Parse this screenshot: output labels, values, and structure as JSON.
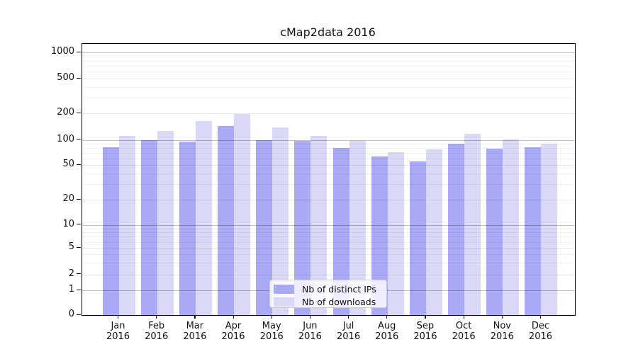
{
  "chart_data": {
    "type": "bar",
    "title": "cMap2data 2016",
    "categories": [
      "Jan",
      "Feb",
      "Mar",
      "Apr",
      "May",
      "Jun",
      "Jul",
      "Aug",
      "Sep",
      "Oct",
      "Nov",
      "Dec"
    ],
    "x_year_label": "2016",
    "series": [
      {
        "name": "Nb of distinct IPs",
        "color": "#a9a9f5",
        "values": [
          82,
          100,
          96,
          145,
          100,
          98,
          80,
          63,
          55,
          90,
          78,
          82
        ]
      },
      {
        "name": "Nb of downloads",
        "color": "#d9d9f7",
        "values": [
          111,
          127,
          162,
          198,
          139,
          111,
          98,
          71,
          77,
          117,
          101,
          91
        ]
      }
    ],
    "y_axis": {
      "scale": "symlog",
      "ticks": [
        0,
        1,
        2,
        5,
        10,
        20,
        50,
        100,
        200,
        500,
        1000
      ],
      "decade_ticks": [
        1,
        10,
        100,
        1000
      ],
      "minor_gridlines": [
        3,
        4,
        6,
        7,
        8,
        9,
        30,
        40,
        60,
        70,
        80,
        90,
        300,
        400,
        600,
        700,
        800,
        900
      ],
      "range": [
        0,
        1260
      ]
    },
    "legend": {
      "position": "lower center",
      "entries": [
        "Nb of distinct IPs",
        "Nb of downloads"
      ]
    },
    "colors": {
      "major_grid": "#c3c3c3",
      "minor_grid": "#ededed",
      "frame": "#000000",
      "background": "#ffffff"
    }
  }
}
